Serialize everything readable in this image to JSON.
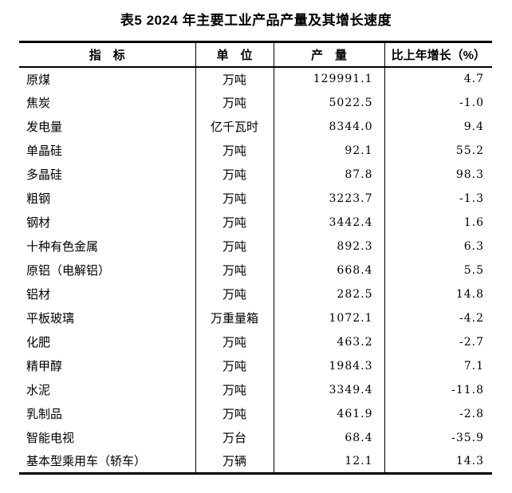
{
  "title": "表5 2024 年主要工业产品产量及其增长速度",
  "table": {
    "headers": {
      "indicator": "指　标",
      "unit": "单　位",
      "output": "产　量",
      "growth": "比上年增长（%）"
    },
    "rows": [
      {
        "indicator": "原煤",
        "unit": "万吨",
        "output": "129991.1",
        "growth": "4.7"
      },
      {
        "indicator": "焦炭",
        "unit": "万吨",
        "output": "5022.5",
        "growth": "-1.0"
      },
      {
        "indicator": "发电量",
        "unit": "亿千瓦时",
        "output": "8344.0",
        "growth": "9.4"
      },
      {
        "indicator": "单晶硅",
        "unit": "万吨",
        "output": "92.1",
        "growth": "55.2"
      },
      {
        "indicator": "多晶硅",
        "unit": "万吨",
        "output": "87.8",
        "growth": "98.3"
      },
      {
        "indicator": "粗钢",
        "unit": "万吨",
        "output": "3223.7",
        "growth": "-1.3"
      },
      {
        "indicator": "钢材",
        "unit": "万吨",
        "output": "3442.4",
        "growth": "1.6"
      },
      {
        "indicator": "十种有色金属",
        "unit": "万吨",
        "output": "892.3",
        "growth": "6.3"
      },
      {
        "indicator": "原铝（电解铝）",
        "unit": "万吨",
        "output": "668.4",
        "growth": "5.5"
      },
      {
        "indicator": "铝材",
        "unit": "万吨",
        "output": "282.5",
        "growth": "14.8"
      },
      {
        "indicator": "平板玻璃",
        "unit": "万重量箱",
        "output": "1072.1",
        "growth": "-4.2"
      },
      {
        "indicator": "化肥",
        "unit": "万吨",
        "output": "463.2",
        "growth": "-2.7"
      },
      {
        "indicator": "精甲醇",
        "unit": "万吨",
        "output": "1984.3",
        "growth": "7.1"
      },
      {
        "indicator": "水泥",
        "unit": "万吨",
        "output": "3349.4",
        "growth": "-11.8"
      },
      {
        "indicator": "乳制品",
        "unit": "万吨",
        "output": "461.9",
        "growth": "-2.8"
      },
      {
        "indicator": "智能电视",
        "unit": "万台",
        "output": "68.4",
        "growth": "-35.9"
      },
      {
        "indicator": "基本型乘用车（轿车）",
        "unit": "万辆",
        "output": "12.1",
        "growth": "14.3"
      }
    ]
  },
  "colors": {
    "text": "#000000",
    "background": "#ffffff",
    "rule": "#000000"
  }
}
